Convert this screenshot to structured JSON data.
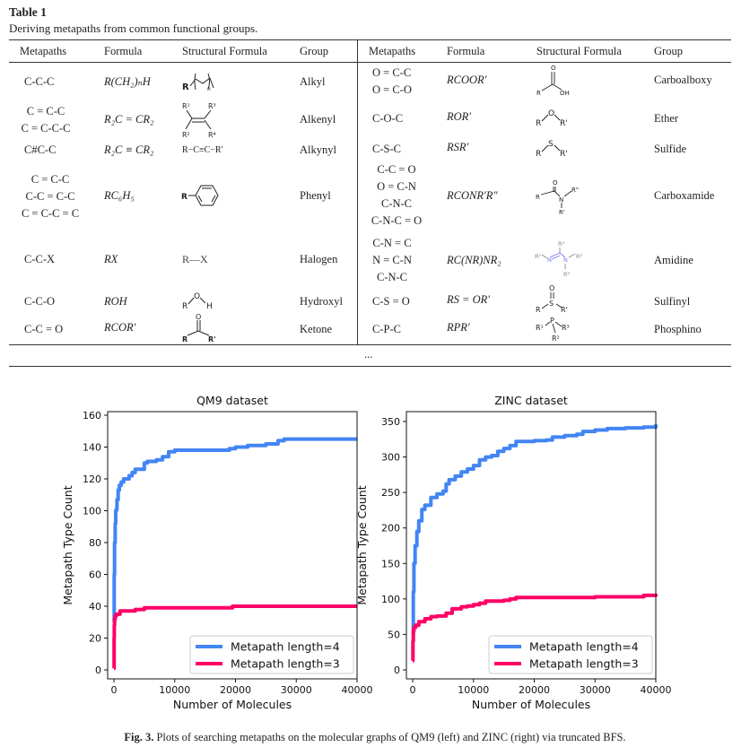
{
  "table": {
    "label": "Table 1",
    "caption": "Deriving metapaths from common functional groups.",
    "headers": [
      "Metapaths",
      "Formula",
      "Structural Formula",
      "Group"
    ],
    "left_rows": [
      {
        "metapaths": [
          "C-C-C"
        ],
        "formula": "R(CH₂)ₙH",
        "structure": "R-(CH2)n- chain",
        "group": "Alkyl"
      },
      {
        "metapaths": [
          "C = C-C",
          "C = C-C-C"
        ],
        "formula": "R₂C = CR₂",
        "structure": "R1R2C=CR3R4",
        "group": "Alkenyl"
      },
      {
        "metapaths": [
          "C#C-C"
        ],
        "formula": "R₂C ≡ CR₂",
        "structure": "R−C≡C−R′",
        "group": "Alkynyl"
      },
      {
        "metapaths": [
          "C = C-C",
          "C-C = C-C",
          "C = C-C = C"
        ],
        "formula": "RC₆H₅",
        "structure": "R-benzene ring",
        "group": "Phenyl"
      },
      {
        "metapaths": [
          "C-C-X"
        ],
        "formula": "RX",
        "structure": "R—X",
        "group": "Halogen"
      },
      {
        "metapaths": [
          "C-C-O"
        ],
        "formula": "ROH",
        "structure": "R-O-H",
        "group": "Hydroxyl"
      },
      {
        "metapaths": [
          "C-C = O"
        ],
        "formula": "RCOR′",
        "structure": "R-C(=O)-R'",
        "group": "Ketone"
      }
    ],
    "right_rows": [
      {
        "metapaths": [
          "O = C-C",
          "O = C-O"
        ],
        "formula": "RCOOR′",
        "structure": "R-C(=O)-OH",
        "group": "Carboalboxy"
      },
      {
        "metapaths": [
          "C-O-C"
        ],
        "formula": "ROR′",
        "structure": "R-O-R'",
        "group": "Ether"
      },
      {
        "metapaths": [
          "C-S-C"
        ],
        "formula": "RSR′",
        "structure": "R-S-R'",
        "group": "Sulfide"
      },
      {
        "metapaths": [
          "C-C = O",
          "O = C-N",
          "C-N-C",
          "C-N-C = O"
        ],
        "formula": "RCONR′R″",
        "structure": "R-C(=O)-N(R')(R\")",
        "group": "Carboxamide"
      },
      {
        "metapaths": [
          "C-N = C",
          "N = C-N",
          "C-N-C"
        ],
        "formula": "RC(NR)NR₂",
        "structure": "R1-N=C(R4)-N(R2)(R3)",
        "group": "Amidine"
      },
      {
        "metapaths": [
          "C-S = O"
        ],
        "formula": "RS = OR′",
        "structure": "R-S(=O)-R'",
        "group": "Sulfinyl"
      },
      {
        "metapaths": [
          "C-P-C"
        ],
        "formula": "RPR′",
        "structure": "P(R1)(R2)(R3)",
        "group": "Phosphino"
      }
    ],
    "ellipsis": "..."
  },
  "structure_labels": {
    "R": "R",
    "Rp": "R'",
    "Rpp": "R\"",
    "O": "O",
    "OH": "OH",
    "H": "H",
    "S": "S",
    "N": "N",
    "P": "P",
    "X": "X",
    "n": "n",
    "R1": "R¹",
    "R2": "R²",
    "R3": "R³",
    "R4": "R⁴",
    "alkynyl": "R−C≡C−R′",
    "halogen": "R—X"
  },
  "figure_caption": {
    "label": "Fig. 3.",
    "text": " Plots of searching metapaths on the molecular graphs of QM9 (left) and ZINC (right) via truncated BFS."
  },
  "chart_data": [
    {
      "type": "line",
      "title": "QM9 dataset",
      "xlabel": "Number of Molecules",
      "ylabel": "Metapath Type Count",
      "xlim": [
        0,
        40000
      ],
      "ylim": [
        0,
        160
      ],
      "xticks": [
        0,
        10000,
        20000,
        30000,
        40000
      ],
      "yticks": [
        0,
        20,
        40,
        60,
        80,
        100,
        120,
        140,
        160
      ],
      "grid": false,
      "legend_position": "lower-right",
      "series": [
        {
          "name": "Metapath length=4",
          "color": "#4285f4",
          "x": [
            0,
            50,
            100,
            200,
            300,
            400,
            500,
            700,
            900,
            1200,
            1600,
            2000,
            2500,
            3000,
            3500,
            4000,
            4500,
            5000,
            5500,
            6000,
            7000,
            7500,
            8000,
            9000,
            10000,
            15000,
            19000,
            20000,
            22000,
            25000,
            27000,
            28000,
            40000
          ],
          "y": [
            30,
            60,
            80,
            92,
            100,
            101,
            107,
            113,
            116,
            118,
            120,
            120,
            122,
            124,
            126,
            126,
            126,
            130,
            131,
            131,
            132,
            132,
            134,
            137,
            138,
            138,
            139,
            140,
            141,
            142,
            144,
            145,
            145
          ]
        },
        {
          "name": "Metapath length=3",
          "color": "#ff0066",
          "x": [
            0,
            30,
            60,
            100,
            200,
            400,
            600,
            1000,
            2000,
            3000,
            3500,
            4000,
            4500,
            5000,
            10000,
            19000,
            19500,
            40000
          ],
          "y": [
            1,
            20,
            28,
            32,
            34,
            35,
            35,
            37,
            37,
            37,
            38,
            38,
            38,
            39,
            39,
            39,
            40,
            40
          ]
        }
      ]
    },
    {
      "type": "line",
      "title": "ZINC dataset",
      "xlabel": "Number of Molecules",
      "ylabel": "Metapath Type Count",
      "xlim": [
        0,
        40000
      ],
      "ylim": [
        0,
        350
      ],
      "xticks": [
        0,
        10000,
        20000,
        30000,
        40000
      ],
      "yticks": [
        0,
        50,
        100,
        150,
        200,
        250,
        300,
        350
      ],
      "grid": false,
      "legend_position": "lower-right",
      "series": [
        {
          "name": "Metapath length=4",
          "color": "#4285f4",
          "x": [
            0,
            100,
            200,
            400,
            700,
            1000,
            1500,
            2000,
            3000,
            4000,
            5000,
            5500,
            6000,
            7000,
            8000,
            9000,
            10000,
            11000,
            12000,
            13000,
            14000,
            15000,
            16000,
            17000,
            20000,
            22000,
            23000,
            25000,
            27000,
            28000,
            30000,
            32000,
            35000,
            38000,
            40000
          ],
          "y": [
            50,
            110,
            150,
            175,
            195,
            210,
            226,
            232,
            243,
            248,
            252,
            262,
            268,
            273,
            279,
            283,
            288,
            296,
            300,
            302,
            308,
            312,
            316,
            322,
            323,
            324,
            328,
            330,
            332,
            336,
            338,
            340,
            341,
            342,
            346
          ]
        },
        {
          "name": "Metapath length=3",
          "color": "#ff0066",
          "x": [
            0,
            50,
            100,
            200,
            500,
            1000,
            2000,
            3000,
            4000,
            5000,
            5500,
            6500,
            8000,
            9000,
            10000,
            11000,
            12000,
            15000,
            16000,
            17000,
            20000,
            29000,
            30000,
            35000,
            38000,
            40000
          ],
          "y": [
            13,
            40,
            55,
            60,
            63,
            68,
            72,
            75,
            76,
            76,
            80,
            86,
            89,
            90,
            92,
            94,
            97,
            98,
            100,
            102,
            102,
            102,
            103,
            103,
            105,
            107
          ]
        }
      ]
    }
  ]
}
